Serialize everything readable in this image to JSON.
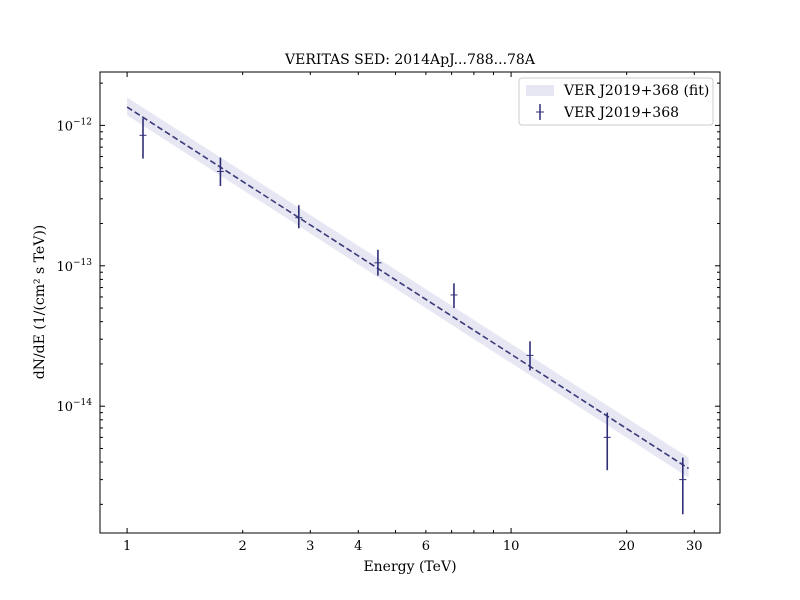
{
  "chart_data": {
    "type": "scatter",
    "title": "VERITAS SED: 2014ApJ...788...78A",
    "xlabel": "Energy (TeV)",
    "ylabel": "dN/dE (1/(cm² s TeV))",
    "xscale": "log",
    "yscale": "log",
    "xlim": [
      0.85,
      35
    ],
    "ylim": [
      1.25e-15,
      2.4e-12
    ],
    "x_ticks": [
      {
        "value": 1,
        "label": "1"
      },
      {
        "value": 2,
        "label": "2"
      },
      {
        "value": 3,
        "label": "3"
      },
      {
        "value": 4,
        "label": "4"
      },
      {
        "value": 6,
        "label": "6"
      },
      {
        "value": 10,
        "label": "10"
      },
      {
        "value": 20,
        "label": "20"
      },
      {
        "value": 30,
        "label": "30"
      }
    ],
    "y_ticks": [
      {
        "value": 1e-12,
        "base": "10",
        "exp": "−12"
      },
      {
        "value": 1e-13,
        "base": "10",
        "exp": "−13"
      },
      {
        "value": 1e-14,
        "base": "10",
        "exp": "−14"
      }
    ],
    "grid": false,
    "legend_position": "top-right",
    "series": [
      {
        "name": "VER J2019+368 (fit)",
        "kind": "fit-line-band",
        "color": "#3a3a7a",
        "band_color": "#e6e7f2",
        "fit": {
          "x": [
            1.0,
            29.0
          ],
          "y": [
            1.35e-12,
            3.6e-15
          ]
        },
        "band_upper": {
          "x": [
            1.0,
            29.0
          ],
          "y": [
            1.58e-12,
            4.3e-15
          ]
        },
        "band_lower": {
          "x": [
            1.0,
            29.0
          ],
          "y": [
            1.18e-12,
            3.1e-15
          ]
        }
      },
      {
        "name": "VER J2019+368",
        "kind": "errorbar",
        "color": "#2f2f78",
        "points": [
          {
            "x": 1.1,
            "y": 8.5e-13,
            "ylo": 5.8e-13,
            "yhi": 1.12e-12
          },
          {
            "x": 1.75,
            "y": 4.7e-13,
            "ylo": 3.7e-13,
            "yhi": 5.9e-13
          },
          {
            "x": 2.8,
            "y": 2.2e-13,
            "ylo": 1.85e-13,
            "yhi": 2.7e-13
          },
          {
            "x": 4.5,
            "y": 1.05e-13,
            "ylo": 8.5e-14,
            "yhi": 1.3e-13
          },
          {
            "x": 7.1,
            "y": 6.2e-14,
            "ylo": 5e-14,
            "yhi": 7.5e-14
          },
          {
            "x": 11.2,
            "y": 2.3e-14,
            "ylo": 1.8e-14,
            "yhi": 2.9e-14
          },
          {
            "x": 17.8,
            "y": 6e-15,
            "ylo": 3.5e-15,
            "yhi": 9e-15
          },
          {
            "x": 28.0,
            "y": 3e-15,
            "ylo": 1.7e-15,
            "yhi": 4.3e-15
          }
        ]
      }
    ]
  }
}
